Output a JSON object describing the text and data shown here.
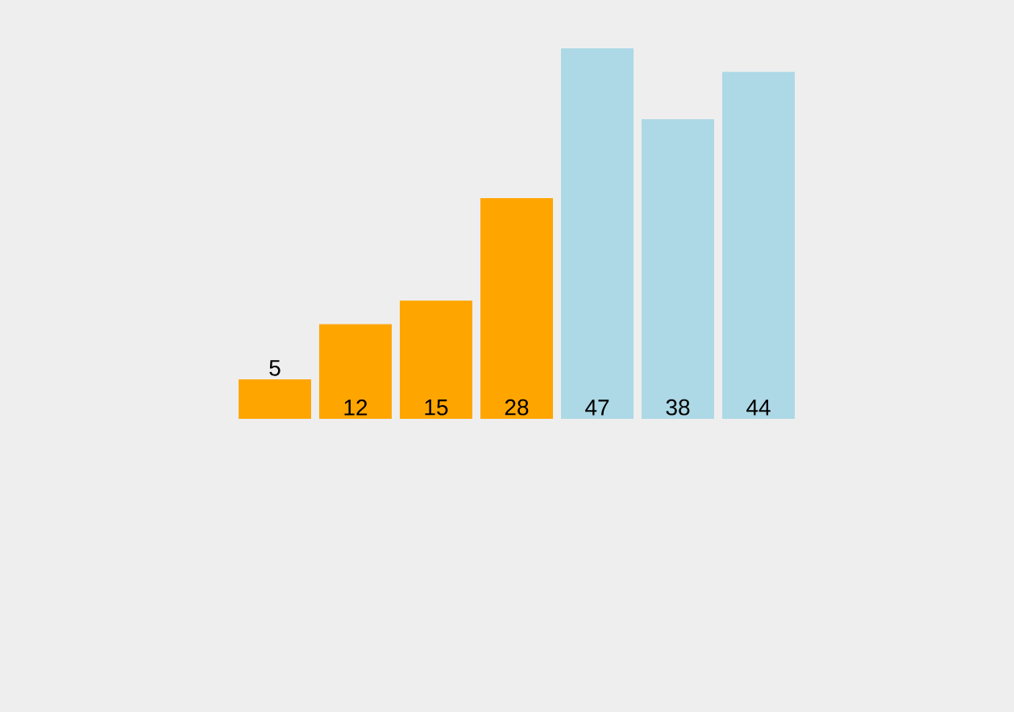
{
  "chart_data": {
    "type": "bar",
    "categories": [
      null,
      null,
      null,
      null,
      null,
      null,
      null
    ],
    "values": [
      5,
      12,
      15,
      28,
      47,
      38,
      44
    ],
    "colors": [
      "#ffa500",
      "#ffa500",
      "#ffa500",
      "#ffa500",
      "#add8e6",
      "#add8e6",
      "#add8e6"
    ],
    "data_labels": true
  }
}
